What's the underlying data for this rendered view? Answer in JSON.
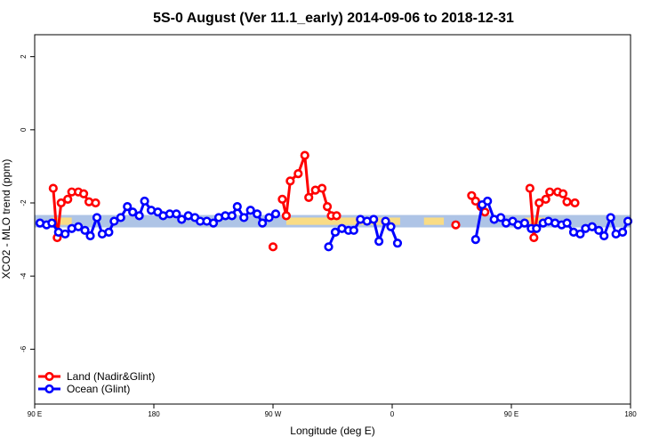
{
  "chart_data": {
    "type": "line",
    "title": "5S-0 August (Ver 11.1_early)   2014-09-06 to 2018-12-31",
    "xlabel": "Longitude (deg E)",
    "ylabel": "XCO2 - MLO trend (ppm)",
    "xlim": [
      90,
      540
    ],
    "ylim": [
      -7.5,
      2.6
    ],
    "x_ticks": [
      {
        "value": 90,
        "label": "90 E"
      },
      {
        "value": 180,
        "label": "180"
      },
      {
        "value": 270,
        "label": "90 W"
      },
      {
        "value": 360,
        "label": "0"
      },
      {
        "value": 450,
        "label": "90 E"
      },
      {
        "value": 540,
        "label": "180"
      }
    ],
    "y_ticks": [
      {
        "value": 2,
        "label": "2"
      },
      {
        "value": 0,
        "label": "0"
      },
      {
        "value": -2,
        "label": "-2"
      },
      {
        "value": -4,
        "label": "-4"
      },
      {
        "value": -6,
        "label": "-6"
      }
    ],
    "bands": [
      {
        "name": "ocean-band",
        "color": "#aec4e6",
        "ymin": -2.67,
        "ymax": -2.33
      },
      {
        "name": "land-band",
        "color": "#f9dc85",
        "ymin": -2.6,
        "ymax": -2.4,
        "segments": [
          [
            102,
            118
          ],
          [
            280,
            366
          ],
          [
            384,
            399
          ],
          [
            460,
            478
          ]
        ]
      }
    ],
    "legend": {
      "position": "bottom-left",
      "entries": [
        {
          "label": "Land (Nadir&Glint)",
          "color": "#ff0000"
        },
        {
          "label": "Ocean (Glint)",
          "color": "#0000ff"
        }
      ]
    },
    "series": [
      {
        "name": "Land (Nadir&Glint)",
        "color": "#ff0000",
        "segments": [
          [
            [
              104,
              -1.6
            ],
            [
              107,
              -2.95
            ],
            [
              110,
              -2.0
            ],
            [
              115,
              -1.9
            ],
            [
              118,
              -1.7
            ]
          ],
          [
            [
              123,
              -1.7
            ],
            [
              127,
              -1.75
            ],
            [
              131,
              -1.97
            ]
          ],
          [
            [
              136,
              -2.0
            ]
          ],
          [
            [
              270,
              -3.2
            ]
          ],
          [
            [
              277,
              -1.9
            ],
            [
              280,
              -2.35
            ],
            [
              283,
              -1.4
            ],
            [
              289,
              -1.2
            ],
            [
              294,
              -0.7
            ],
            [
              297,
              -1.85
            ],
            [
              302,
              -1.65
            ],
            [
              307,
              -1.6
            ],
            [
              311,
              -2.1
            ],
            [
              314,
              -2.35
            ],
            [
              318,
              -2.35
            ]
          ],
          [
            [
              408,
              -2.6
            ]
          ],
          [
            [
              420,
              -1.8
            ],
            [
              423,
              -1.95
            ],
            [
              427,
              -2.1
            ],
            [
              430,
              -2.25
            ]
          ],
          [
            [
              464,
              -1.6
            ],
            [
              467,
              -2.95
            ],
            [
              471,
              -2.0
            ],
            [
              476,
              -1.9
            ],
            [
              479,
              -1.7
            ]
          ],
          [
            [
              485,
              -1.7
            ],
            [
              489,
              -1.75
            ],
            [
              492,
              -1.97
            ]
          ],
          [
            [
              498,
              -2.0
            ]
          ]
        ]
      },
      {
        "name": "Ocean (Glint)",
        "color": "#0000ff",
        "segments": [
          [
            [
              94,
              -2.55
            ],
            [
              99,
              -2.6
            ],
            [
              103,
              -2.55
            ],
            [
              108,
              -2.8
            ],
            [
              113,
              -2.85
            ],
            [
              118,
              -2.7
            ],
            [
              123,
              -2.65
            ],
            [
              128,
              -2.75
            ],
            [
              132,
              -2.9
            ],
            [
              137,
              -2.4
            ],
            [
              141,
              -2.85
            ],
            [
              146,
              -2.8
            ],
            [
              150,
              -2.5
            ],
            [
              155,
              -2.4
            ],
            [
              160,
              -2.1
            ],
            [
              164,
              -2.25
            ],
            [
              169,
              -2.35
            ],
            [
              173,
              -1.95
            ],
            [
              178,
              -2.2
            ],
            [
              183,
              -2.25
            ],
            [
              187,
              -2.35
            ],
            [
              192,
              -2.3
            ],
            [
              197,
              -2.3
            ],
            [
              201,
              -2.45
            ],
            [
              206,
              -2.35
            ],
            [
              211,
              -2.4
            ],
            [
              215,
              -2.5
            ],
            [
              220,
              -2.5
            ],
            [
              225,
              -2.55
            ],
            [
              229,
              -2.4
            ],
            [
              234,
              -2.35
            ],
            [
              239,
              -2.35
            ],
            [
              243,
              -2.1
            ],
            [
              248,
              -2.4
            ],
            [
              253,
              -2.2
            ],
            [
              258,
              -2.3
            ],
            [
              262,
              -2.55
            ],
            [
              267,
              -2.4
            ],
            [
              272,
              -2.3
            ]
          ],
          [
            [
              312,
              -3.2
            ],
            [
              317,
              -2.8
            ],
            [
              322,
              -2.7
            ],
            [
              327,
              -2.75
            ],
            [
              331,
              -2.75
            ],
            [
              336,
              -2.45
            ],
            [
              341,
              -2.5
            ],
            [
              346,
              -2.45
            ],
            [
              350,
              -3.05
            ],
            [
              355,
              -2.5
            ],
            [
              359,
              -2.65
            ],
            [
              364,
              -3.1
            ]
          ],
          [
            [
              423,
              -3.0
            ],
            [
              428,
              -2.05
            ],
            [
              432,
              -1.95
            ],
            [
              437,
              -2.45
            ],
            [
              442,
              -2.4
            ],
            [
              446,
              -2.55
            ],
            [
              451,
              -2.5
            ],
            [
              455,
              -2.6
            ],
            [
              460,
              -2.55
            ],
            [
              465,
              -2.7
            ],
            [
              469,
              -2.7
            ],
            [
              474,
              -2.55
            ],
            [
              478,
              -2.5
            ],
            [
              483,
              -2.55
            ],
            [
              488,
              -2.6
            ],
            [
              492,
              -2.55
            ],
            [
              497,
              -2.8
            ],
            [
              502,
              -2.85
            ],
            [
              506,
              -2.7
            ],
            [
              511,
              -2.65
            ],
            [
              516,
              -2.75
            ],
            [
              520,
              -2.9
            ],
            [
              525,
              -2.4
            ],
            [
              529,
              -2.85
            ],
            [
              534,
              -2.8
            ],
            [
              538,
              -2.5
            ]
          ]
        ]
      }
    ]
  }
}
